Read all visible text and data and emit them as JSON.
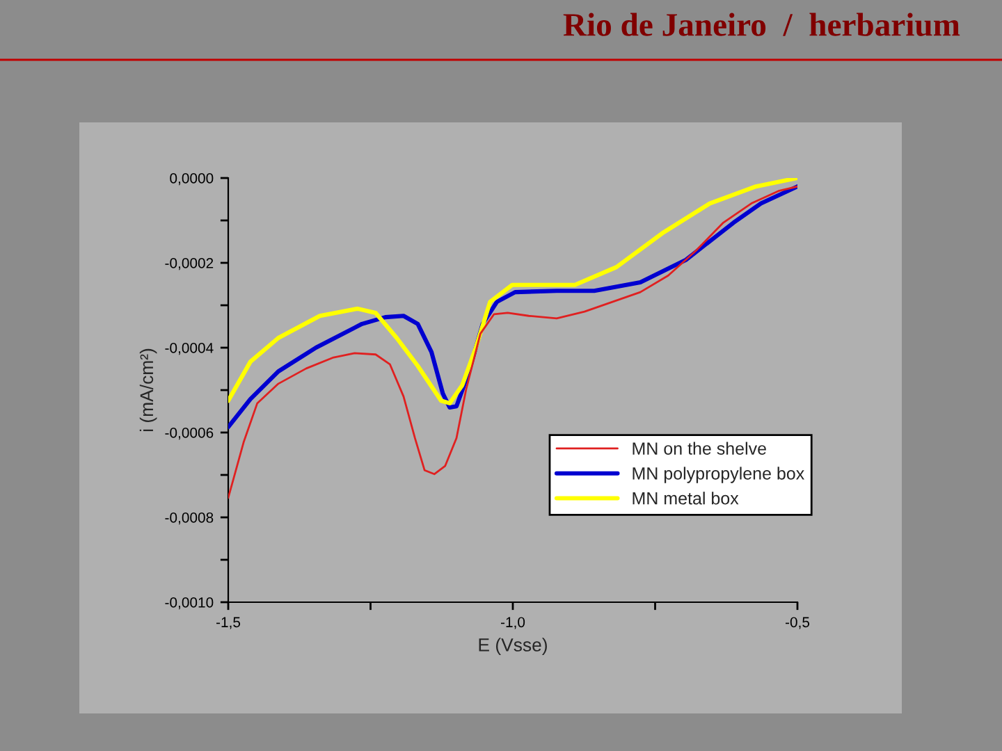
{
  "chart_data": {
    "type": "line",
    "title": "Rio de Janeiro  /  herbarium",
    "xlabel": "E (Vsse)",
    "ylabel": "i (mA/cm²)",
    "xlim": [
      -1.5,
      -0.5
    ],
    "ylim": [
      -0.001,
      0.0
    ],
    "xticks": [
      {
        "value": -1.5,
        "label": "-1,5"
      },
      {
        "value": -1.25,
        "label": null
      },
      {
        "value": -1.0,
        "label": "-1,0"
      },
      {
        "value": -0.75,
        "label": null
      },
      {
        "value": -0.5,
        "label": "-0,5"
      }
    ],
    "yticks": [
      {
        "value": -0.001,
        "label": "-0,0010"
      },
      {
        "value": -0.0009,
        "label": null
      },
      {
        "value": -0.0008,
        "label": "-0,0008"
      },
      {
        "value": -0.0007,
        "label": null
      },
      {
        "value": -0.0006,
        "label": "-0,0006"
      },
      {
        "value": -0.0005,
        "label": null
      },
      {
        "value": -0.0004,
        "label": "-0,0004"
      },
      {
        "value": -0.0003,
        "label": null
      },
      {
        "value": -0.0002,
        "label": "-0,0002"
      },
      {
        "value": -0.0001,
        "label": null
      },
      {
        "value": 0.0,
        "label": "0,0000"
      }
    ],
    "grid": false,
    "legend": "right",
    "series": [
      {
        "name": "MN on the shelve",
        "color": "#e02020",
        "x": [
          -1.5,
          -1.473,
          -1.449,
          -1.412,
          -1.363,
          -1.315,
          -1.278,
          -1.241,
          -1.216,
          -1.192,
          -1.172,
          -1.155,
          -1.138,
          -1.119,
          -1.099,
          -1.082,
          -1.057,
          -1.033,
          -1.009,
          -0.972,
          -0.923,
          -0.874,
          -0.825,
          -0.776,
          -0.727,
          -0.678,
          -0.63,
          -0.581,
          -0.532,
          -0.5
        ],
        "values": [
          -0.000754,
          -0.000623,
          -0.000531,
          -0.000485,
          -0.000449,
          -0.000423,
          -0.000413,
          -0.000416,
          -0.000439,
          -0.000515,
          -0.000613,
          -0.000689,
          -0.000698,
          -0.000679,
          -0.000613,
          -0.000498,
          -0.000367,
          -0.000321,
          -0.000318,
          -0.000325,
          -0.000331,
          -0.000315,
          -0.000292,
          -0.000269,
          -0.00023,
          -0.000171,
          -0.000105,
          -6e-05,
          -3e-05,
          -2e-05
        ]
      },
      {
        "name": "MN polypropylene box",
        "color": "#0000d0",
        "x": [
          -1.5,
          -1.461,
          -1.412,
          -1.346,
          -1.265,
          -1.224,
          -1.192,
          -1.167,
          -1.143,
          -1.123,
          -1.111,
          -1.099,
          -1.077,
          -1.053,
          -1.028,
          -0.996,
          -0.923,
          -0.857,
          -0.776,
          -0.696,
          -0.612,
          -0.564,
          -0.5
        ],
        "values": [
          -0.000587,
          -0.000521,
          -0.000456,
          -0.0004,
          -0.000344,
          -0.000328,
          -0.000325,
          -0.000344,
          -0.00041,
          -0.000508,
          -0.000541,
          -0.000538,
          -0.000456,
          -0.000344,
          -0.000292,
          -0.000269,
          -0.000266,
          -0.000266,
          -0.000246,
          -0.000193,
          -0.000105,
          -6e-05,
          -2e-05
        ]
      },
      {
        "name": "MN metal box",
        "color": "#ffff00",
        "x": [
          -1.5,
          -1.461,
          -1.412,
          -1.339,
          -1.273,
          -1.241,
          -1.204,
          -1.167,
          -1.126,
          -1.111,
          -1.089,
          -1.065,
          -1.04,
          -1.001,
          -0.972,
          -0.891,
          -0.818,
          -0.735,
          -0.654,
          -0.573,
          -0.5
        ],
        "values": [
          -0.000525,
          -0.000433,
          -0.000377,
          -0.000325,
          -0.000308,
          -0.000318,
          -0.000377,
          -0.000443,
          -0.000525,
          -0.000531,
          -0.000489,
          -0.0004,
          -0.000292,
          -0.000252,
          -0.000252,
          -0.000252,
          -0.00021,
          -0.000128,
          -6e-05,
          -2e-05,
          0.0
        ]
      }
    ]
  }
}
